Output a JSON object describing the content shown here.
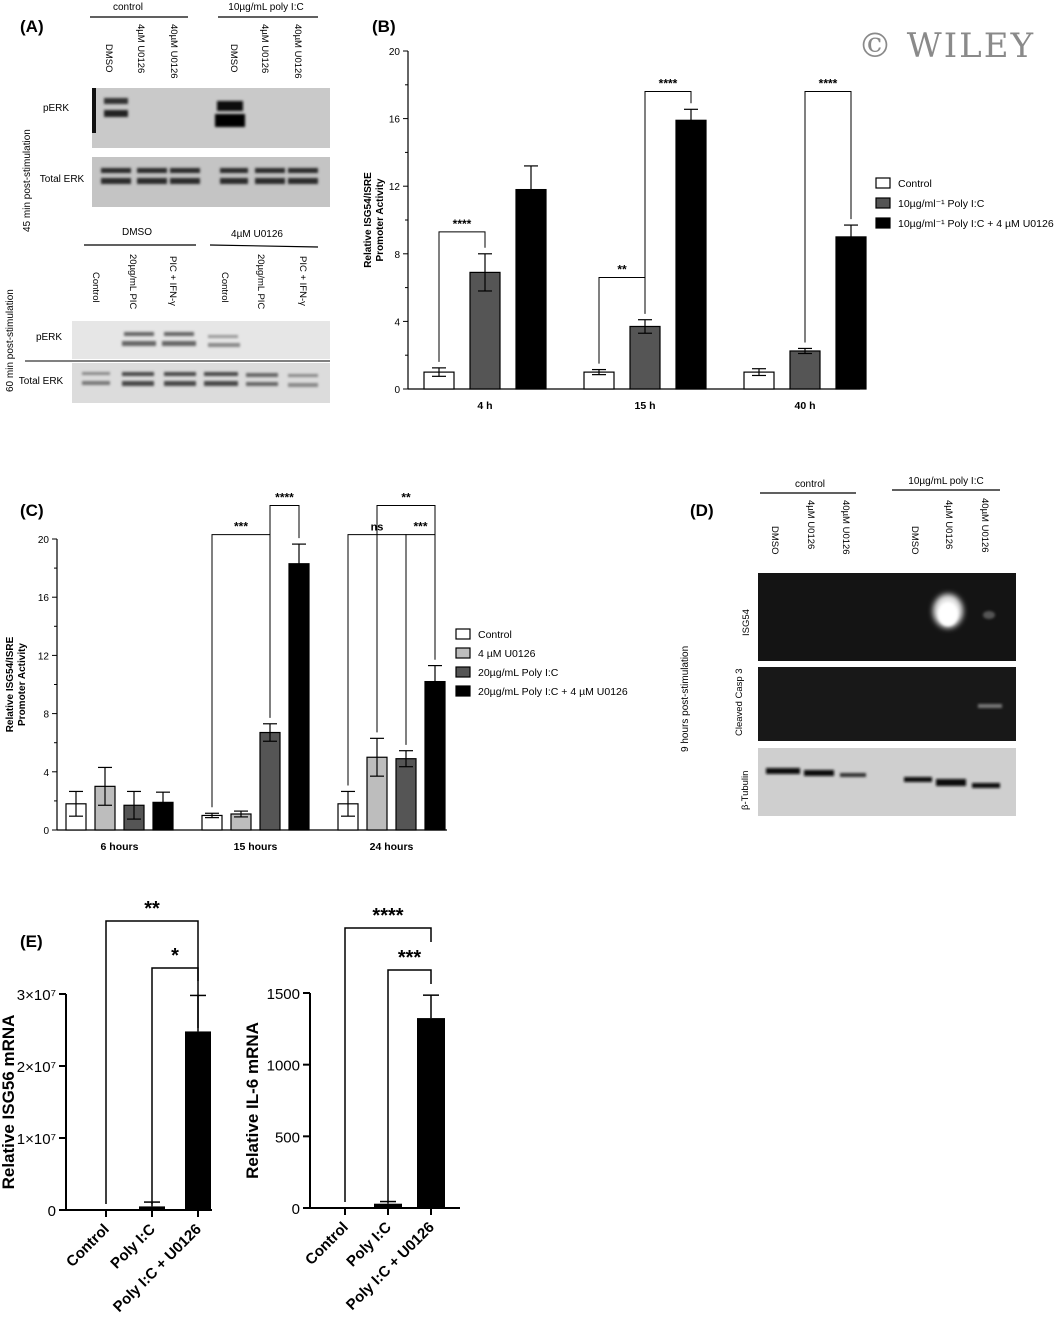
{
  "watermark": "© WILEY",
  "panels": {
    "A": {
      "label": "(A)",
      "top_groups": [
        "control",
        "10µg/mL poly I:C"
      ],
      "top_lanes": [
        "DMSO",
        "4µM U0126",
        "40µM U0126",
        "DMSO",
        "4µM U0126",
        "40µM U0126"
      ],
      "top_side": "45 min post-stimulation",
      "top_rows": [
        "pERK",
        "Total ERK"
      ],
      "bottom_groups": [
        "DMSO",
        "4µM U0126"
      ],
      "bottom_lanes": [
        "Control",
        "20µg/mL PIC",
        "PIC + IFN-γ",
        "Control",
        "20µg/mL PIC",
        "PIC + IFN-γ"
      ],
      "bottom_side": "60 min post-stimulation",
      "bottom_rows": [
        "pERK",
        "Total ERK"
      ]
    },
    "B": {
      "label": "(B)"
    },
    "C": {
      "label": "(C)"
    },
    "D": {
      "label": "(D)",
      "groups": [
        "control",
        "10µg/mL poly I:C"
      ],
      "lanes": [
        "DMSO",
        "4µM U0126",
        "40µM U0126",
        "DMSO",
        "4µM U0126",
        "40µM U0126"
      ],
      "side": "9 hours post-stimulation",
      "rows": [
        "ISG54",
        "Cleaved Casp 3",
        "β-Tubulin"
      ]
    },
    "E": {
      "label": "(E)"
    }
  },
  "chart_data": [
    {
      "panel": "B",
      "type": "bar",
      "categories": [
        "4 h",
        "15 h",
        "40 h"
      ],
      "ylabel": "Relative ISG54/ISRE Promoter Activity",
      "ylim": [
        0,
        20
      ],
      "yticks": [
        0,
        4,
        8,
        12,
        16,
        20
      ],
      "legend_position": "right",
      "colors": [
        "#ffffff",
        "#555555",
        "#000000"
      ],
      "series": [
        {
          "name": "Control",
          "values": [
            1.0,
            1.0,
            1.0
          ],
          "errors": [
            0.25,
            0.15,
            0.2
          ]
        },
        {
          "name": "10µg/ml⁻¹ Poly I:C",
          "values": [
            6.9,
            3.7,
            2.25
          ],
          "errors": [
            1.1,
            0.4,
            0.15
          ]
        },
        {
          "name": "10µg/ml⁻¹ Poly I:C + 4 µM U0126",
          "values": [
            11.8,
            15.9,
            9.0
          ],
          "errors": [
            1.4,
            0.65,
            0.7
          ]
        }
      ],
      "annotations": [
        {
          "text": "****",
          "category": 0,
          "from": 0,
          "to": 1,
          "y": 9.3
        },
        {
          "text": "**",
          "category": 1,
          "from": 0,
          "to": 1,
          "y": 6.6
        },
        {
          "text": "****",
          "category": 1,
          "from": 1,
          "to": 2,
          "y": 17.6
        },
        {
          "text": "****",
          "category": 2,
          "from": 1,
          "to": 2,
          "y": 17.6
        }
      ]
    },
    {
      "panel": "C",
      "type": "bar",
      "categories": [
        "6 hours",
        "15 hours",
        "24 hours"
      ],
      "ylabel": "Relative ISG54/ISRE Promoter  Activity",
      "ylim": [
        0,
        20
      ],
      "yticks": [
        0,
        4,
        8,
        12,
        16,
        20
      ],
      "legend_position": "right",
      "colors": [
        "#ffffff",
        "#bdbdbd",
        "#555555",
        "#000000"
      ],
      "series": [
        {
          "name": "Control",
          "values": [
            1.8,
            1.0,
            1.8
          ],
          "errors": [
            0.85,
            0.15,
            0.85
          ]
        },
        {
          "name": "4 µM U0126",
          "values": [
            3.0,
            1.1,
            5.0
          ],
          "errors": [
            1.3,
            0.2,
            1.3
          ]
        },
        {
          "name": "20µg/mL Poly I:C",
          "values": [
            1.7,
            6.7,
            4.9
          ],
          "errors": [
            0.95,
            0.6,
            0.55
          ]
        },
        {
          "name": "20µg/mL Poly I:C + 4 µM U0126",
          "values": [
            1.9,
            18.3,
            10.2
          ],
          "errors": [
            0.7,
            1.35,
            1.1
          ]
        }
      ],
      "annotations": [
        {
          "text": "***",
          "category": 1,
          "from": 0,
          "to": 2,
          "y": 20.3
        },
        {
          "text": "****",
          "category": 1,
          "from": 2,
          "to": 3,
          "y": 22.3
        },
        {
          "text": "ns",
          "category": 2,
          "from": 0,
          "to": 2,
          "y": 20.3
        },
        {
          "text": "***",
          "category": 2,
          "from": 2,
          "to": 3,
          "y": 20.3
        },
        {
          "text": "**",
          "category": 2,
          "from": 1,
          "to": 3,
          "y": 22.3
        }
      ]
    },
    {
      "panel": "E-left",
      "type": "bar",
      "categories": [
        "Control",
        "Poly I:C",
        "Poly I:C + U0126"
      ],
      "ylabel": "Relative ISG56 mRNA",
      "ylim": [
        0,
        30000000
      ],
      "ytick_labels": [
        "0",
        "1×10⁷",
        "2×10⁷",
        "3×10⁷"
      ],
      "values": [
        0,
        500000,
        24800000
      ],
      "errors": [
        0,
        600000,
        5000000
      ],
      "annotations": [
        {
          "text": "**",
          "from": 0,
          "to": 2
        },
        {
          "text": "*",
          "from": 1,
          "to": 2
        }
      ]
    },
    {
      "panel": "E-right",
      "type": "bar",
      "categories": [
        "Control",
        "Poly I:C",
        "Poly I:C + U0126"
      ],
      "ylabel": "Relative IL-6 mRNA",
      "ylim": [
        0,
        1500
      ],
      "ytick_labels": [
        "0",
        "500",
        "1000",
        "1500"
      ],
      "values": [
        0,
        30,
        1325
      ],
      "errors": [
        0,
        15,
        160
      ],
      "annotations": [
        {
          "text": "****",
          "from": 0,
          "to": 2
        },
        {
          "text": "***",
          "from": 1,
          "to": 2
        }
      ]
    }
  ]
}
